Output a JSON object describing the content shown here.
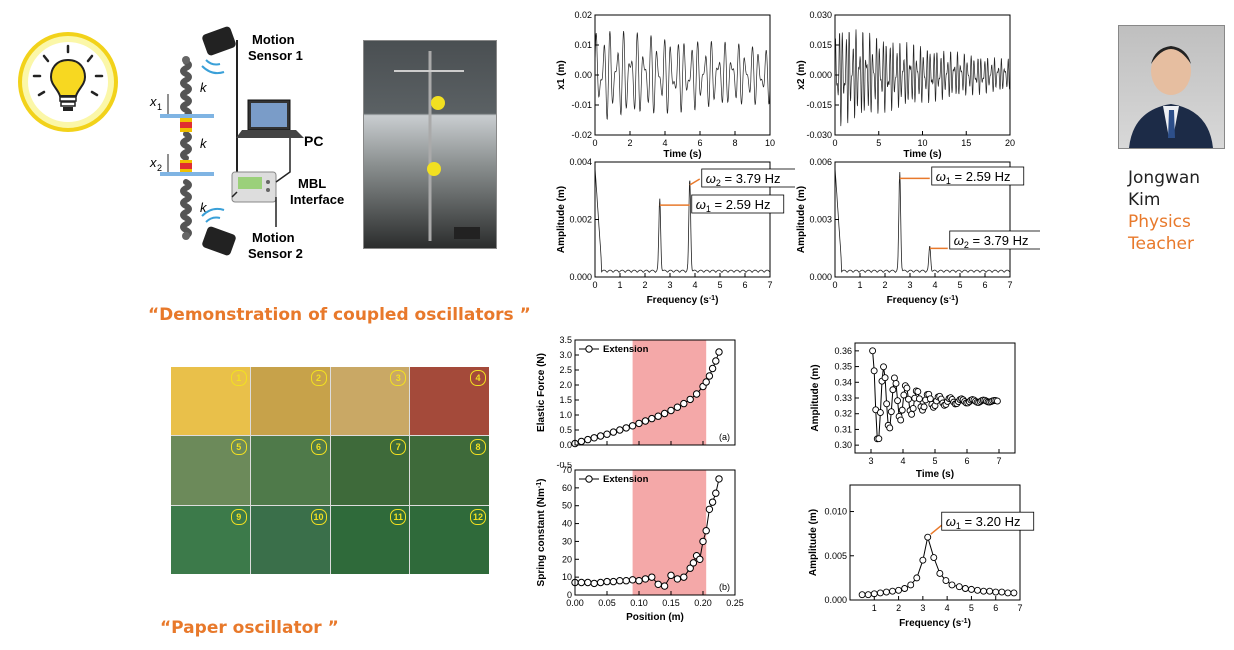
{
  "theme": {
    "accent": "#e8792b",
    "bulb_glow": "#f8f06a",
    "bulb_ring": "#f2d21a",
    "highlight": "#f4a8a8"
  },
  "icons": {
    "bulb": "lightbulb-icon"
  },
  "setup_diagram": {
    "sensor1": [
      "Motion",
      "Sensor 1"
    ],
    "sensor2": [
      "Motion",
      "Sensor 2"
    ],
    "pc": "PC",
    "interface": [
      "MBL",
      "Interface"
    ],
    "x1": "x",
    "x1_sub": "1",
    "x2": "x",
    "x2_sub": "2",
    "k": "k"
  },
  "captions": {
    "coupled": "“Demonstration of coupled oscillators ”",
    "paper": "“Paper oscillator ”"
  },
  "paper_photo_numbers": [
    "1",
    "2",
    "3",
    "4",
    "5",
    "6",
    "7",
    "8",
    "9",
    "10",
    "11",
    "12"
  ],
  "person": {
    "first": "Jongwan",
    "last": "Kim",
    "role1": "Physics",
    "role2": "Teacher"
  },
  "chart_data": [
    {
      "type": "line",
      "id": "x1-time",
      "ylabel": "x1 (m)",
      "xlabel": "Time (s)",
      "xlim": [
        0,
        10
      ],
      "ylim": [
        -0.02,
        0.02
      ],
      "xticks": [
        "0",
        "2",
        "4",
        "6",
        "8",
        "10"
      ],
      "yticks": [
        "-0.02",
        "-0.01",
        "0.00",
        "0.01",
        "0.02"
      ]
    },
    {
      "type": "line",
      "id": "x2-time",
      "ylabel": "x2 (m)",
      "xlabel": "Time (s)",
      "xlim": [
        0,
        20
      ],
      "ylim": [
        -0.03,
        0.03
      ],
      "xticks": [
        "0",
        "5",
        "10",
        "15",
        "20"
      ],
      "yticks": [
        "-0.030",
        "-0.015",
        "0.000",
        "0.015",
        "0.030"
      ]
    },
    {
      "type": "line",
      "id": "spectrum-1",
      "ylabel": "Amplitude (m)",
      "xlabel": "Frequency (s",
      "xlabel_sup": "-1",
      "xlabel_end": ")",
      "xlim": [
        0,
        7
      ],
      "ylim": [
        0,
        0.004
      ],
      "xticks": [
        "0",
        "1",
        "2",
        "3",
        "4",
        "5",
        "6",
        "7"
      ],
      "yticks": [
        "0.000",
        "0.002",
        "0.004"
      ],
      "peaks": [
        {
          "x": 2.59,
          "y": 0.0025
        },
        {
          "x": 3.79,
          "y": 0.0032
        }
      ],
      "annotations": [
        {
          "sym": "ω",
          "sub": "2",
          "text": " = 3.79 Hz"
        },
        {
          "sym": "ω",
          "sub": "1",
          "text": " = 2.59 Hz"
        }
      ]
    },
    {
      "type": "line",
      "id": "spectrum-2",
      "ylabel": "Amplitude (m)",
      "xlabel": "Frequency (s",
      "xlabel_sup": "-1",
      "xlabel_end": ")",
      "xlim": [
        0,
        7
      ],
      "ylim": [
        0,
        0.007
      ],
      "xticks": [
        "0",
        "1",
        "2",
        "3",
        "4",
        "5",
        "6",
        "7"
      ],
      "yticks": [
        "0.000",
        "0.003",
        "0.006"
      ],
      "peaks": [
        {
          "x": 2.59,
          "y": 0.006
        },
        {
          "x": 3.79,
          "y": 0.0015
        }
      ],
      "annotations": [
        {
          "sym": "ω",
          "sub": "1",
          "text": " = 2.59 Hz"
        },
        {
          "sym": "ω",
          "sub": "2",
          "text": " = 3.79 Hz"
        }
      ]
    },
    {
      "type": "scatter",
      "id": "elastic-force",
      "ylabel": "Elastic Force (N)",
      "legend": "Extension",
      "panel": "(a)",
      "xlim": [
        0,
        0.25
      ],
      "ylim": [
        0,
        3.5
      ],
      "yticks": [
        "0.0",
        "0.5",
        "1.0",
        "1.5",
        "2.0",
        "2.5",
        "3.0",
        "3.5"
      ],
      "shaded_range": [
        0.09,
        0.205
      ],
      "x": [
        0.0,
        0.01,
        0.02,
        0.03,
        0.04,
        0.05,
        0.06,
        0.07,
        0.08,
        0.09,
        0.1,
        0.11,
        0.12,
        0.13,
        0.14,
        0.15,
        0.16,
        0.17,
        0.18,
        0.19,
        0.2,
        0.205,
        0.21,
        0.215,
        0.22,
        0.225
      ],
      "y": [
        0.05,
        0.12,
        0.18,
        0.24,
        0.3,
        0.36,
        0.43,
        0.5,
        0.57,
        0.64,
        0.72,
        0.8,
        0.88,
        0.96,
        1.05,
        1.15,
        1.26,
        1.38,
        1.52,
        1.7,
        1.95,
        2.1,
        2.3,
        2.55,
        2.8,
        3.1
      ]
    },
    {
      "type": "scatter",
      "id": "spring-constant",
      "ylabel": "Spring constant (Nm",
      "ylabel_sup": "-1",
      "ylabel_end": ")",
      "xlabel": "Position (m)",
      "legend": "Extension",
      "panel": "(b)",
      "xlim": [
        0,
        0.25
      ],
      "ylim": [
        0,
        70
      ],
      "xticks": [
        "0.00",
        "0.05",
        "0.10",
        "0.15",
        "0.20",
        "0.25"
      ],
      "yticks": [
        "0",
        "10",
        "20",
        "30",
        "40",
        "50",
        "60",
        "70"
      ],
      "top_tick": "-0.5",
      "shaded_range": [
        0.09,
        0.205
      ],
      "x": [
        0.0,
        0.01,
        0.02,
        0.03,
        0.04,
        0.05,
        0.06,
        0.07,
        0.08,
        0.09,
        0.1,
        0.11,
        0.12,
        0.13,
        0.14,
        0.15,
        0.16,
        0.17,
        0.18,
        0.185,
        0.19,
        0.195,
        0.2,
        0.205,
        0.21,
        0.215,
        0.22,
        0.225
      ],
      "y": [
        7,
        7,
        7,
        6.5,
        7,
        7.5,
        7.5,
        8,
        8,
        8.5,
        8,
        9,
        10,
        6,
        5,
        11,
        9,
        10,
        15,
        18,
        22,
        20,
        30,
        36,
        48,
        52,
        57,
        65
      ]
    },
    {
      "type": "scatter",
      "id": "amplitude-time",
      "ylabel": "Amplitude (m)",
      "xlabel": "Time (s)",
      "xlim": [
        2.5,
        7.5
      ],
      "ylim": [
        0.295,
        0.365
      ],
      "xticks": [
        "3",
        "4",
        "5",
        "6",
        "7"
      ],
      "yticks": [
        "0.30",
        "0.31",
        "0.32",
        "0.33",
        "0.34",
        "0.35",
        "0.36"
      ]
    },
    {
      "type": "scatter",
      "id": "amplitude-frequency",
      "ylabel": "Amplitude (m)",
      "xlabel": "Frequency (s",
      "xlabel_sup": "-1",
      "xlabel_end": ")",
      "xlim": [
        0,
        7
      ],
      "ylim": [
        0,
        0.013
      ],
      "xticks": [
        "1",
        "2",
        "3",
        "4",
        "5",
        "6",
        "7"
      ],
      "yticks": [
        "0.000",
        "0.005",
        "0.010"
      ],
      "annotation": {
        "sym": "ω",
        "sub": "1",
        "text": " = 3.20 Hz"
      },
      "x": [
        0.5,
        0.75,
        1.0,
        1.25,
        1.5,
        1.75,
        2.0,
        2.25,
        2.5,
        2.75,
        3.0,
        3.2,
        3.45,
        3.7,
        3.95,
        4.2,
        4.5,
        4.75,
        5.0,
        5.25,
        5.5,
        5.75,
        6.0,
        6.25,
        6.5,
        6.75
      ],
      "y": [
        0.0006,
        0.0006,
        0.0007,
        0.0008,
        0.0009,
        0.001,
        0.0011,
        0.0013,
        0.0017,
        0.0025,
        0.0045,
        0.0071,
        0.0048,
        0.003,
        0.0022,
        0.0017,
        0.0015,
        0.0013,
        0.0012,
        0.0011,
        0.001,
        0.001,
        0.0009,
        0.0009,
        0.0008,
        0.0008
      ]
    }
  ]
}
